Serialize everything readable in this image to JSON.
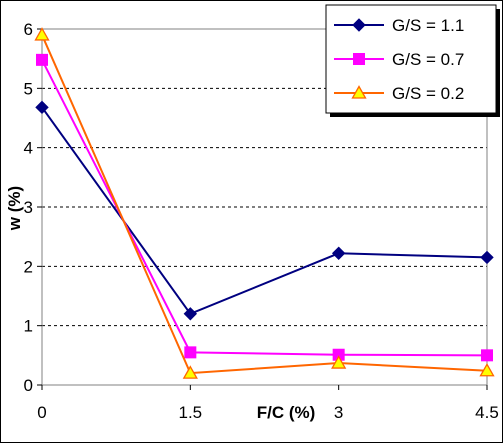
{
  "chart_data": {
    "type": "line",
    "xlabel": "F/C (%)",
    "ylabel": "w (%)",
    "categories": [
      "0",
      "1.5",
      "3",
      "4.5"
    ],
    "x": [
      0,
      1.5,
      3,
      4.5
    ],
    "xlim": [
      0,
      4.5
    ],
    "ylim": [
      0,
      6
    ],
    "yticks": [
      "0",
      "1",
      "2",
      "3",
      "4",
      "5",
      "6"
    ],
    "grid": "horizontal dashed",
    "legend_position": "top-right",
    "series": [
      {
        "name": "G/S = 1.1",
        "values": [
          4.68,
          1.2,
          2.22,
          2.15
        ],
        "color": "#000080",
        "marker": "diamond"
      },
      {
        "name": "G/S = 0.7",
        "values": [
          5.48,
          0.55,
          0.51,
          0.5
        ],
        "color": "#ff00ff",
        "marker": "square"
      },
      {
        "name": "G/S = 0.2",
        "values": [
          5.9,
          0.2,
          0.37,
          0.24
        ],
        "color": "#ff6600",
        "marker_fill": "#ffff00",
        "marker": "triangle"
      }
    ]
  }
}
